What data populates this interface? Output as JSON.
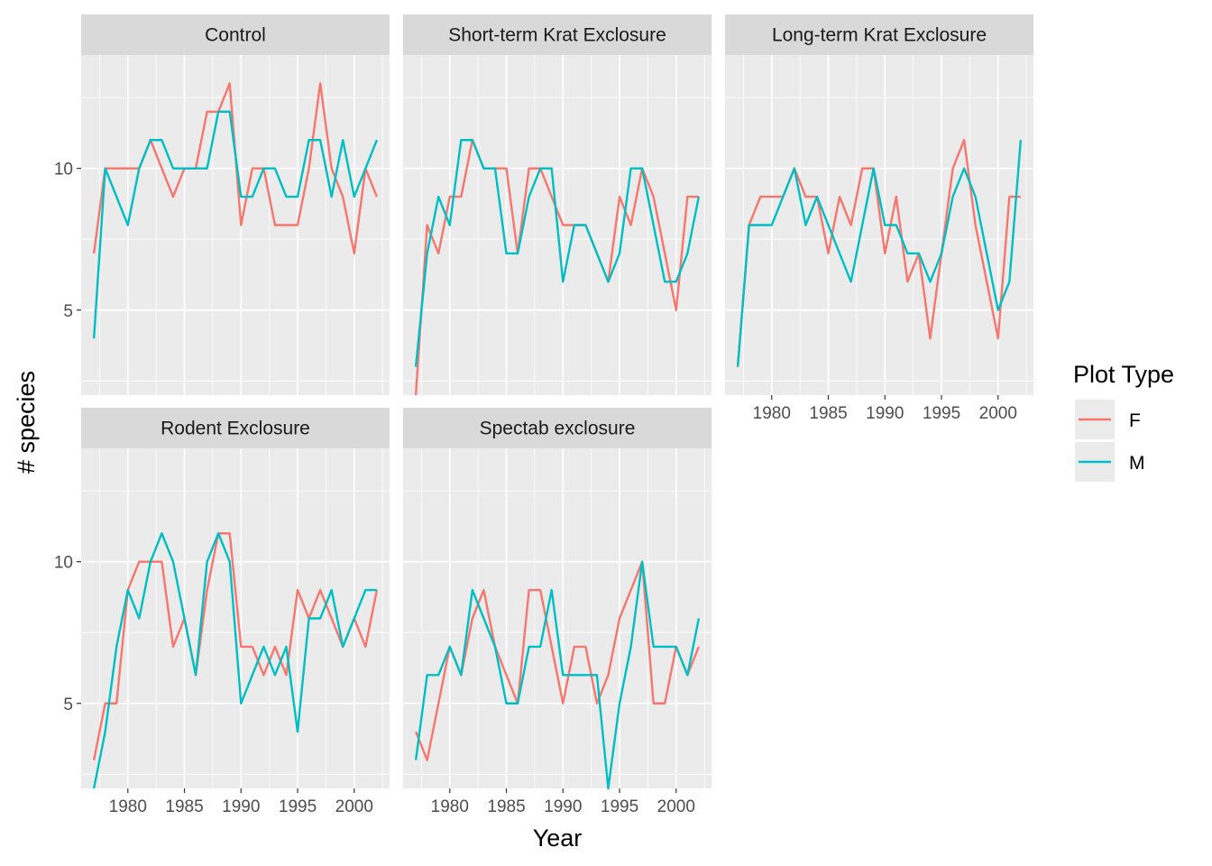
{
  "chart_data": {
    "type": "line",
    "facet_layout": "wrap",
    "x_label": "Year",
    "y_label": "# species",
    "xlim": [
      1977,
      2002
    ],
    "ylim": [
      2,
      14
    ],
    "x_ticks": [
      1980,
      1985,
      1990,
      1995,
      2000
    ],
    "y_ticks": [
      5,
      10
    ],
    "grid": true,
    "legend": {
      "title": "Plot Type",
      "position": "right",
      "entries": [
        {
          "label": "F",
          "color": "#F8766D"
        },
        {
          "label": "M",
          "color": "#00BFC4"
        }
      ]
    },
    "x": [
      1977,
      1978,
      1979,
      1980,
      1981,
      1982,
      1983,
      1984,
      1985,
      1986,
      1987,
      1988,
      1989,
      1990,
      1991,
      1992,
      1993,
      1994,
      1995,
      1996,
      1997,
      1998,
      1999,
      2000,
      2001,
      2002
    ],
    "panels": [
      {
        "title": "Control",
        "series": [
          {
            "name": "F",
            "values": [
              7,
              10,
              10,
              10,
              10,
              11,
              10,
              9,
              10,
              10,
              12,
              12,
              13,
              8,
              10,
              10,
              8,
              8,
              8,
              10,
              13,
              10,
              9,
              7,
              10,
              9
            ]
          },
          {
            "name": "M",
            "values": [
              4,
              10,
              9,
              8,
              10,
              11,
              11,
              10,
              10,
              10,
              10,
              12,
              12,
              9,
              9,
              10,
              10,
              9,
              9,
              11,
              11,
              9,
              11,
              9,
              10,
              11
            ]
          }
        ]
      },
      {
        "title": "Short-term Krat Exclosure",
        "series": [
          {
            "name": "F",
            "values": [
              2,
              8,
              7,
              9,
              9,
              11,
              10,
              10,
              10,
              7,
              10,
              10,
              9,
              8,
              8,
              8,
              7,
              6,
              9,
              8,
              10,
              9,
              7,
              5,
              9,
              9
            ]
          },
          {
            "name": "M",
            "values": [
              3,
              7,
              9,
              8,
              11,
              11,
              10,
              10,
              7,
              7,
              9,
              10,
              10,
              6,
              8,
              8,
              7,
              6,
              7,
              10,
              10,
              8,
              6,
              6,
              7,
              9
            ]
          }
        ]
      },
      {
        "title": "Long-term Krat Exclosure",
        "series": [
          {
            "name": "F",
            "values": [
              3,
              8,
              9,
              9,
              9,
              10,
              9,
              9,
              7,
              9,
              8,
              10,
              10,
              7,
              9,
              6,
              7,
              4,
              7,
              10,
              11,
              8,
              6,
              4,
              9,
              9
            ]
          },
          {
            "name": "M",
            "values": [
              3,
              8,
              8,
              8,
              9,
              10,
              8,
              9,
              8,
              7,
              6,
              8,
              10,
              8,
              8,
              7,
              7,
              6,
              7,
              9,
              10,
              9,
              7,
              5,
              6,
              11
            ]
          }
        ]
      },
      {
        "title": "Rodent Exclosure",
        "series": [
          {
            "name": "F",
            "values": [
              3,
              5,
              5,
              9,
              10,
              10,
              10,
              7,
              8,
              6,
              9,
              11,
              11,
              7,
              7,
              6,
              7,
              6,
              9,
              8,
              9,
              8,
              7,
              8,
              7,
              9
            ]
          },
          {
            "name": "M",
            "values": [
              2,
              4,
              7,
              9,
              8,
              10,
              11,
              10,
              8,
              6,
              10,
              11,
              10,
              5,
              6,
              7,
              6,
              7,
              4,
              8,
              8,
              9,
              7,
              8,
              9,
              9
            ]
          }
        ]
      },
      {
        "title": "Spectab exclosure",
        "series": [
          {
            "name": "F",
            "values": [
              4,
              3,
              5,
              7,
              6,
              8,
              9,
              7,
              6,
              5,
              9,
              9,
              7,
              5,
              7,
              7,
              5,
              6,
              8,
              9,
              10,
              5,
              5,
              7,
              6,
              7
            ]
          },
          {
            "name": "M",
            "values": [
              3,
              6,
              6,
              7,
              6,
              9,
              8,
              7,
              5,
              5,
              7,
              7,
              9,
              6,
              6,
              6,
              6,
              2,
              5,
              7,
              10,
              7,
              7,
              7,
              6,
              8
            ]
          }
        ]
      }
    ]
  }
}
